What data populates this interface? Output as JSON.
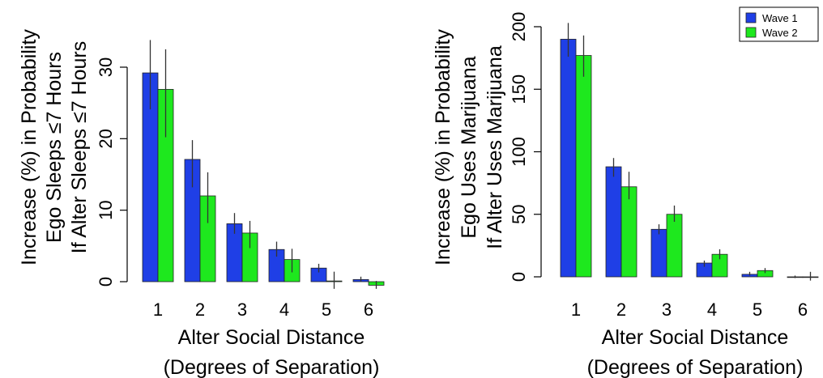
{
  "chart_data": [
    {
      "type": "bar",
      "categories": [
        "1",
        "2",
        "3",
        "4",
        "5",
        "6"
      ],
      "series": [
        {
          "name": "Wave 1",
          "values": [
            29.2,
            17.1,
            8.1,
            4.5,
            1.9,
            0.3
          ],
          "err_low": [
            24.1,
            13.2,
            6.7,
            3.5,
            1.3,
            0.0
          ],
          "err_high": [
            33.8,
            19.8,
            9.6,
            5.6,
            2.5,
            0.7
          ]
        },
        {
          "name": "Wave 2",
          "values": [
            26.9,
            12.0,
            6.8,
            3.1,
            0.1,
            -0.5
          ],
          "err_low": [
            20.2,
            8.2,
            4.7,
            1.3,
            -1.0,
            -1.0
          ],
          "err_high": [
            32.5,
            15.3,
            8.5,
            4.6,
            1.4,
            0.1
          ]
        }
      ],
      "ylabel": [
        "Increase (%) in Probability",
        "Ego Sleeps ≤7 Hours",
        "If Alter Sleeps ≤7 Hours"
      ],
      "xlabel": [
        "Alter Social Distance",
        "(Degrees of Separation)"
      ],
      "yticks": [
        "0",
        "10",
        "20",
        "30"
      ],
      "ylim": [
        -1.5,
        36
      ],
      "legend": null
    },
    {
      "type": "bar",
      "categories": [
        "1",
        "2",
        "3",
        "4",
        "5",
        "6"
      ],
      "series": [
        {
          "name": "Wave 1",
          "values": [
            190,
            88,
            38,
            11,
            2,
            0
          ],
          "err_low": [
            176,
            80,
            34,
            8,
            1,
            -1
          ],
          "err_high": [
            203,
            95,
            42,
            13,
            4,
            1
          ]
        },
        {
          "name": "Wave 2",
          "values": [
            177,
            72,
            50,
            18,
            5,
            0
          ],
          "err_low": [
            160,
            62,
            44,
            14,
            3,
            -3
          ],
          "err_high": [
            193,
            84,
            57,
            22,
            7,
            4
          ]
        }
      ],
      "ylabel": [
        "Increase (%) in Probability",
        "Ego Uses Marijuana",
        "If Alter Uses Marijuana"
      ],
      "xlabel": [
        "Alter Social Distance",
        "(Degrees of Separation)"
      ],
      "yticks": [
        "0",
        "50",
        "100",
        "150",
        "200"
      ],
      "ylim": [
        -5,
        215
      ],
      "legend": {
        "position": "top-right",
        "entries": [
          "Wave 1",
          "Wave 2"
        ]
      }
    }
  ],
  "colors": {
    "wave1": "#1f3fe6",
    "wave2": "#1ee81e",
    "outline": "#222222"
  }
}
